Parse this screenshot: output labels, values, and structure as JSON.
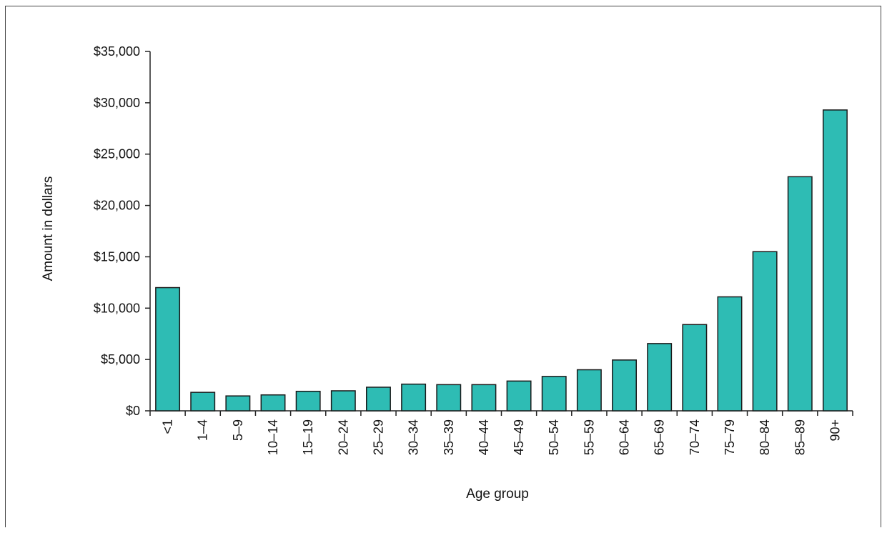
{
  "chart_data": {
    "type": "bar",
    "title": "",
    "xlabel": "Age group",
    "ylabel": "Amount in dollars",
    "ylim": [
      0,
      35000
    ],
    "yticks": [
      {
        "value": 0,
        "label": "$0"
      },
      {
        "value": 5000,
        "label": "$5,000"
      },
      {
        "value": 10000,
        "label": "$10,000"
      },
      {
        "value": 15000,
        "label": "$15,000"
      },
      {
        "value": 20000,
        "label": "$20,000"
      },
      {
        "value": 25000,
        "label": "$25,000"
      },
      {
        "value": 30000,
        "label": "$30,000"
      },
      {
        "value": 35000,
        "label": "$35,000"
      }
    ],
    "categories": [
      "<1",
      "1–4",
      "5–9",
      "10–14",
      "15–19",
      "20–24",
      "25–29",
      "30–34",
      "35–39",
      "40–44",
      "45–49",
      "50–54",
      "55–59",
      "60–64",
      "65–69",
      "70–74",
      "75–79",
      "80–84",
      "85–89",
      "90+"
    ],
    "values": [
      12000,
      1800,
      1450,
      1550,
      1900,
      1950,
      2300,
      2600,
      2550,
      2550,
      2900,
      3350,
      4000,
      4950,
      6550,
      8400,
      11100,
      15500,
      22800,
      29300
    ],
    "grid": false,
    "legend": "none",
    "bar_color": "#2ebcb4",
    "bar_edge_color": "#1a1a1a"
  }
}
